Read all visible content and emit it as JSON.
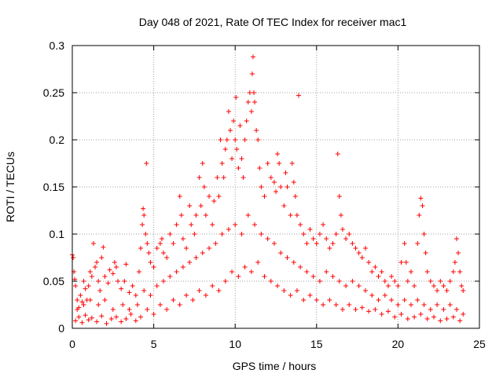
{
  "chart_data": {
    "type": "scatter",
    "title": "Day 048 of 2021, Rate Of TEC Index for receiver mac1",
    "xlabel": "GPS time / hours",
    "ylabel": "ROTI / TECUs",
    "xlim": [
      0,
      25
    ],
    "ylim": [
      0,
      0.3
    ],
    "x_ticks": [
      "0",
      "5",
      "10",
      "15",
      "20",
      "25"
    ],
    "y_ticks": [
      "0",
      "0.05",
      "0.1",
      "0.15",
      "0.2",
      "0.25",
      "0.3"
    ],
    "grid": true,
    "marker": "plus",
    "colors": {
      "series": "#ff0000",
      "grid": "#a0a0a0",
      "axes": "#000000"
    },
    "series": [
      {
        "name": "",
        "points": [
          [
            0.0,
            0.078
          ],
          [
            0.05,
            0.075
          ],
          [
            0.1,
            0.06
          ],
          [
            0.15,
            0.052
          ],
          [
            0.2,
            0.045
          ],
          [
            0.3,
            0.03
          ],
          [
            0.4,
            0.022
          ],
          [
            0.5,
            0.035
          ],
          [
            0.6,
            0.028
          ],
          [
            0.7,
            0.05
          ],
          [
            0.8,
            0.042
          ],
          [
            0.9,
            0.03
          ],
          [
            1.0,
            0.045
          ],
          [
            1.1,
            0.06
          ],
          [
            1.2,
            0.055
          ],
          [
            1.3,
            0.09
          ],
          [
            1.4,
            0.065
          ],
          [
            1.5,
            0.07
          ],
          [
            1.6,
            0.05
          ],
          [
            1.7,
            0.04
          ],
          [
            1.8,
            0.075
          ],
          [
            1.9,
            0.086
          ],
          [
            2.0,
            0.055
          ],
          [
            2.2,
            0.048
          ],
          [
            2.3,
            0.062
          ],
          [
            2.5,
            0.058
          ],
          [
            2.6,
            0.07
          ],
          [
            2.7,
            0.065
          ],
          [
            2.8,
            0.05
          ],
          [
            3.0,
            0.042
          ],
          [
            3.2,
            0.05
          ],
          [
            3.3,
            0.068
          ],
          [
            3.5,
            0.038
          ],
          [
            3.7,
            0.045
          ],
          [
            3.9,
            0.035
          ],
          [
            4.1,
            0.06
          ],
          [
            4.2,
            0.085
          ],
          [
            4.3,
            0.11
          ],
          [
            4.35,
            0.127
          ],
          [
            4.4,
            0.12
          ],
          [
            4.5,
            0.1
          ],
          [
            4.55,
            0.175
          ],
          [
            4.6,
            0.09
          ],
          [
            4.7,
            0.08
          ],
          [
            4.8,
            0.07
          ],
          [
            5.0,
            0.065
          ],
          [
            5.2,
            0.085
          ],
          [
            5.4,
            0.09
          ],
          [
            5.5,
            0.095
          ],
          [
            5.6,
            0.08
          ],
          [
            5.8,
            0.075
          ],
          [
            6.0,
            0.1
          ],
          [
            6.2,
            0.09
          ],
          [
            6.4,
            0.11
          ],
          [
            6.6,
            0.14
          ],
          [
            6.7,
            0.12
          ],
          [
            6.8,
            0.095
          ],
          [
            7.0,
            0.085
          ],
          [
            7.2,
            0.13
          ],
          [
            7.3,
            0.11
          ],
          [
            7.5,
            0.1
          ],
          [
            7.6,
            0.12
          ],
          [
            7.8,
            0.16
          ],
          [
            7.9,
            0.13
          ],
          [
            8.0,
            0.175
          ],
          [
            8.1,
            0.15
          ],
          [
            8.2,
            0.12
          ],
          [
            8.4,
            0.14
          ],
          [
            8.6,
            0.11
          ],
          [
            8.7,
            0.135
          ],
          [
            8.9,
            0.16
          ],
          [
            9.0,
            0.14
          ],
          [
            9.1,
            0.2
          ],
          [
            9.2,
            0.175
          ],
          [
            9.3,
            0.16
          ],
          [
            9.4,
            0.19
          ],
          [
            9.5,
            0.2
          ],
          [
            9.6,
            0.23
          ],
          [
            9.7,
            0.21
          ],
          [
            9.8,
            0.18
          ],
          [
            9.9,
            0.22
          ],
          [
            10.0,
            0.2
          ],
          [
            10.05,
            0.245
          ],
          [
            10.1,
            0.19
          ],
          [
            10.2,
            0.17
          ],
          [
            10.3,
            0.215
          ],
          [
            10.4,
            0.18
          ],
          [
            10.5,
            0.16
          ],
          [
            10.6,
            0.2
          ],
          [
            10.7,
            0.22
          ],
          [
            10.8,
            0.24
          ],
          [
            10.9,
            0.25
          ],
          [
            11.0,
            0.23
          ],
          [
            11.05,
            0.27
          ],
          [
            11.1,
            0.288
          ],
          [
            11.15,
            0.25
          ],
          [
            11.2,
            0.24
          ],
          [
            11.3,
            0.21
          ],
          [
            11.4,
            0.2
          ],
          [
            11.5,
            0.17
          ],
          [
            11.6,
            0.15
          ],
          [
            11.8,
            0.14
          ],
          [
            12.0,
            0.175
          ],
          [
            12.2,
            0.16
          ],
          [
            12.4,
            0.155
          ],
          [
            12.5,
            0.145
          ],
          [
            12.6,
            0.185
          ],
          [
            12.7,
            0.175
          ],
          [
            12.8,
            0.15
          ],
          [
            13.0,
            0.13
          ],
          [
            13.1,
            0.165
          ],
          [
            13.2,
            0.15
          ],
          [
            13.4,
            0.12
          ],
          [
            13.5,
            0.175
          ],
          [
            13.6,
            0.155
          ],
          [
            13.7,
            0.14
          ],
          [
            13.8,
            0.12
          ],
          [
            13.9,
            0.247
          ],
          [
            14.0,
            0.11
          ],
          [
            14.2,
            0.1
          ],
          [
            14.4,
            0.09
          ],
          [
            14.6,
            0.105
          ],
          [
            14.8,
            0.095
          ],
          [
            15.0,
            0.09
          ],
          [
            15.2,
            0.1
          ],
          [
            15.4,
            0.11
          ],
          [
            15.6,
            0.095
          ],
          [
            15.8,
            0.085
          ],
          [
            16.0,
            0.09
          ],
          [
            16.2,
            0.1
          ],
          [
            16.3,
            0.185
          ],
          [
            16.4,
            0.14
          ],
          [
            16.5,
            0.12
          ],
          [
            16.6,
            0.105
          ],
          [
            16.8,
            0.095
          ],
          [
            17.0,
            0.1
          ],
          [
            17.2,
            0.09
          ],
          [
            17.4,
            0.085
          ],
          [
            17.6,
            0.08
          ],
          [
            17.8,
            0.075
          ],
          [
            18.0,
            0.085
          ],
          [
            18.2,
            0.07
          ],
          [
            18.4,
            0.06
          ],
          [
            18.6,
            0.065
          ],
          [
            18.8,
            0.055
          ],
          [
            19.0,
            0.06
          ],
          [
            19.2,
            0.05
          ],
          [
            19.4,
            0.045
          ],
          [
            19.6,
            0.055
          ],
          [
            19.8,
            0.05
          ],
          [
            20.0,
            0.045
          ],
          [
            20.2,
            0.07
          ],
          [
            20.4,
            0.09
          ],
          [
            20.5,
            0.07
          ],
          [
            20.6,
            0.05
          ],
          [
            20.8,
            0.06
          ],
          [
            21.0,
            0.045
          ],
          [
            21.2,
            0.09
          ],
          [
            21.3,
            0.12
          ],
          [
            21.4,
            0.138
          ],
          [
            21.5,
            0.13
          ],
          [
            21.6,
            0.1
          ],
          [
            21.7,
            0.08
          ],
          [
            21.8,
            0.06
          ],
          [
            22.0,
            0.05
          ],
          [
            22.2,
            0.045
          ],
          [
            22.4,
            0.04
          ],
          [
            22.6,
            0.05
          ],
          [
            22.8,
            0.045
          ],
          [
            23.0,
            0.04
          ],
          [
            23.2,
            0.05
          ],
          [
            23.4,
            0.06
          ],
          [
            23.5,
            0.07
          ],
          [
            23.6,
            0.095
          ],
          [
            23.7,
            0.08
          ],
          [
            23.8,
            0.06
          ],
          [
            23.9,
            0.045
          ],
          [
            24.0,
            0.04
          ],
          [
            0.2,
            0.008
          ],
          [
            0.4,
            0.012
          ],
          [
            0.6,
            0.006
          ],
          [
            0.8,
            0.014
          ],
          [
            1.0,
            0.009
          ],
          [
            1.2,
            0.011
          ],
          [
            1.5,
            0.007
          ],
          [
            1.8,
            0.013
          ],
          [
            2.1,
            0.005
          ],
          [
            2.4,
            0.01
          ],
          [
            2.7,
            0.012
          ],
          [
            3.0,
            0.007
          ],
          [
            3.3,
            0.01
          ],
          [
            3.6,
            0.015
          ],
          [
            3.9,
            0.008
          ],
          [
            4.2,
            0.012
          ],
          [
            4.6,
            0.02
          ],
          [
            5.0,
            0.015
          ],
          [
            5.4,
            0.025
          ],
          [
            5.8,
            0.02
          ],
          [
            6.2,
            0.03
          ],
          [
            6.6,
            0.025
          ],
          [
            7.0,
            0.035
          ],
          [
            7.4,
            0.03
          ],
          [
            7.8,
            0.04
          ],
          [
            8.2,
            0.035
          ],
          [
            8.6,
            0.045
          ],
          [
            9.0,
            0.04
          ],
          [
            9.4,
            0.05
          ],
          [
            9.8,
            0.06
          ],
          [
            10.2,
            0.055
          ],
          [
            10.6,
            0.065
          ],
          [
            11.0,
            0.06
          ],
          [
            11.4,
            0.07
          ],
          [
            11.8,
            0.055
          ],
          [
            12.2,
            0.05
          ],
          [
            12.6,
            0.045
          ],
          [
            13.0,
            0.04
          ],
          [
            13.4,
            0.035
          ],
          [
            13.8,
            0.04
          ],
          [
            14.2,
            0.03
          ],
          [
            14.6,
            0.035
          ],
          [
            15.0,
            0.03
          ],
          [
            15.4,
            0.025
          ],
          [
            15.8,
            0.03
          ],
          [
            16.2,
            0.025
          ],
          [
            16.6,
            0.02
          ],
          [
            17.0,
            0.025
          ],
          [
            17.4,
            0.02
          ],
          [
            17.8,
            0.022
          ],
          [
            18.2,
            0.018
          ],
          [
            18.6,
            0.02
          ],
          [
            19.0,
            0.015
          ],
          [
            19.4,
            0.018
          ],
          [
            19.8,
            0.012
          ],
          [
            20.2,
            0.015
          ],
          [
            20.6,
            0.01
          ],
          [
            21.0,
            0.012
          ],
          [
            21.4,
            0.015
          ],
          [
            21.8,
            0.01
          ],
          [
            22.2,
            0.012
          ],
          [
            22.6,
            0.008
          ],
          [
            23.0,
            0.01
          ],
          [
            23.4,
            0.012
          ],
          [
            23.8,
            0.008
          ],
          [
            0.3,
            0.02
          ],
          [
            0.7,
            0.025
          ],
          [
            1.1,
            0.03
          ],
          [
            1.6,
            0.025
          ],
          [
            2.0,
            0.03
          ],
          [
            2.5,
            0.02
          ],
          [
            3.1,
            0.025
          ],
          [
            3.5,
            0.02
          ],
          [
            4.0,
            0.025
          ],
          [
            4.4,
            0.04
          ],
          [
            4.8,
            0.035
          ],
          [
            5.2,
            0.045
          ],
          [
            5.6,
            0.05
          ],
          [
            6.0,
            0.055
          ],
          [
            6.4,
            0.06
          ],
          [
            6.8,
            0.065
          ],
          [
            7.2,
            0.07
          ],
          [
            7.6,
            0.075
          ],
          [
            8.0,
            0.08
          ],
          [
            8.4,
            0.085
          ],
          [
            8.8,
            0.09
          ],
          [
            9.2,
            0.1
          ],
          [
            9.6,
            0.105
          ],
          [
            10.0,
            0.11
          ],
          [
            10.4,
            0.1
          ],
          [
            10.8,
            0.12
          ],
          [
            11.2,
            0.11
          ],
          [
            11.6,
            0.1
          ],
          [
            12.0,
            0.095
          ],
          [
            12.4,
            0.09
          ],
          [
            12.8,
            0.08
          ],
          [
            13.2,
            0.075
          ],
          [
            13.6,
            0.07
          ],
          [
            14.0,
            0.065
          ],
          [
            14.4,
            0.06
          ],
          [
            14.8,
            0.055
          ],
          [
            15.2,
            0.05
          ],
          [
            15.6,
            0.06
          ],
          [
            16.0,
            0.055
          ],
          [
            16.4,
            0.05
          ],
          [
            16.8,
            0.045
          ],
          [
            17.2,
            0.05
          ],
          [
            17.6,
            0.045
          ],
          [
            18.0,
            0.04
          ],
          [
            18.4,
            0.035
          ],
          [
            18.8,
            0.03
          ],
          [
            19.2,
            0.035
          ],
          [
            19.6,
            0.03
          ],
          [
            20.0,
            0.025
          ],
          [
            20.4,
            0.03
          ],
          [
            20.8,
            0.025
          ],
          [
            21.2,
            0.03
          ],
          [
            21.6,
            0.025
          ],
          [
            22.0,
            0.02
          ],
          [
            22.4,
            0.025
          ],
          [
            22.8,
            0.02
          ],
          [
            23.2,
            0.025
          ],
          [
            23.6,
            0.02
          ],
          [
            24.0,
            0.015
          ]
        ]
      }
    ]
  }
}
